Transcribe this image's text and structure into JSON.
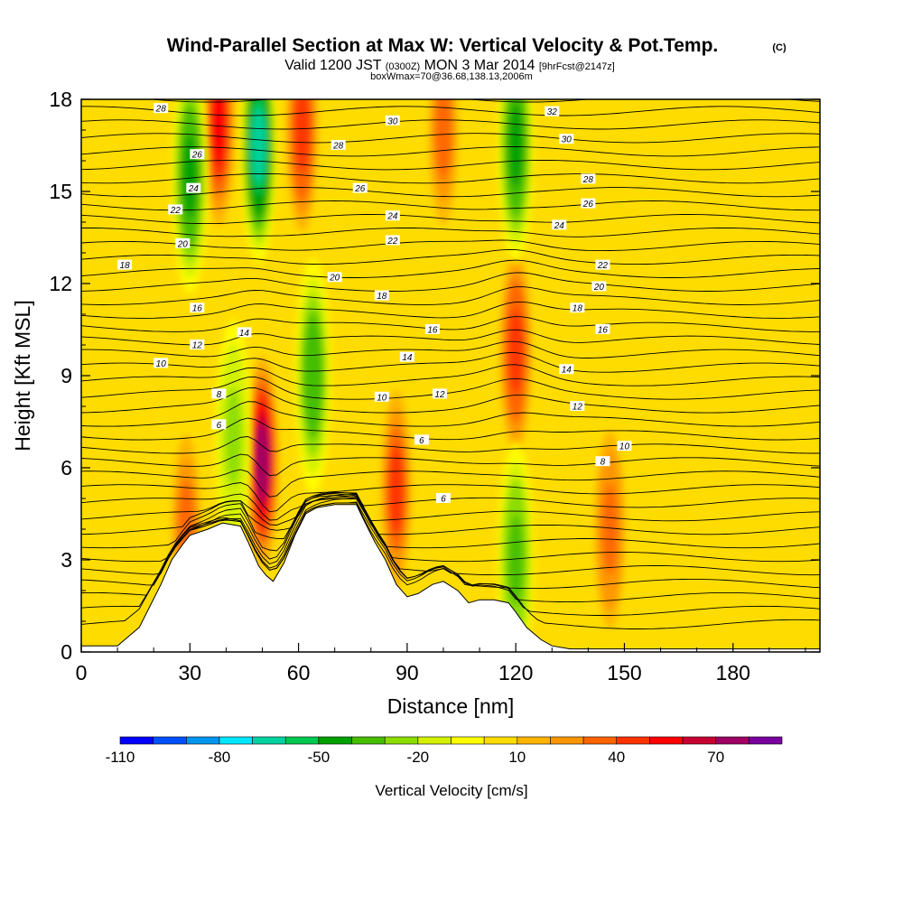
{
  "chart_data": {
    "type": "heatmap",
    "title": "Wind-Parallel Section at Max W: Vertical Velocity & Pot.Temp.",
    "title_mark": "(C)",
    "subtitle": {
      "valid": "Valid 1200 JST",
      "zulu": "(0300Z)",
      "date": "MON 3 Mar 2014",
      "fcst": "[9hrFcst@2147z]"
    },
    "box_info": "boxWmax=70@36.68,138.13,2006m",
    "xlabel": "Distance [nm]",
    "ylabel": "Height [Kft MSL]",
    "xlim": [
      0,
      204
    ],
    "ylim": [
      0,
      18
    ],
    "xticks": [
      "0",
      "30",
      "60",
      "90",
      "120",
      "150",
      "180"
    ],
    "yticks": [
      "0",
      "3",
      "6",
      "9",
      "12",
      "15",
      "18"
    ],
    "colorbar": {
      "label": "Vertical Velocity [cm/s]",
      "tick_labels": [
        "-110",
        "-80",
        "-50",
        "-20",
        "10",
        "40",
        "70"
      ],
      "levels": [
        -110,
        -100,
        -90,
        -80,
        -70,
        -60,
        -50,
        -40,
        -30,
        -20,
        -10,
        0,
        10,
        20,
        30,
        40,
        50,
        60,
        70,
        80
      ],
      "colors": [
        "#0000ff",
        "#0050ff",
        "#0096f0",
        "#00e6ff",
        "#00d2a0",
        "#00c850",
        "#00a000",
        "#46be00",
        "#8cdc00",
        "#d2f000",
        "#ffff00",
        "#ffdc00",
        "#ffb400",
        "#ff9600",
        "#ff6400",
        "#ff3200",
        "#ff0000",
        "#c80032",
        "#a00064",
        "#7800a0"
      ]
    },
    "terrain_kft": [
      [
        0,
        0.2
      ],
      [
        10,
        0.2
      ],
      [
        13,
        0.5
      ],
      [
        16,
        0.8
      ],
      [
        19,
        1.5
      ],
      [
        22,
        2.2
      ],
      [
        25,
        3.0
      ],
      [
        28,
        3.5
      ],
      [
        30,
        3.8
      ],
      [
        35,
        4.0
      ],
      [
        39,
        4.2
      ],
      [
        44,
        4.1
      ],
      [
        46,
        3.6
      ],
      [
        49,
        2.8
      ],
      [
        51,
        2.5
      ],
      [
        53,
        2.3
      ],
      [
        56,
        2.9
      ],
      [
        59,
        3.8
      ],
      [
        62,
        4.5
      ],
      [
        65,
        4.7
      ],
      [
        70,
        4.8
      ],
      [
        76,
        4.8
      ],
      [
        78,
        4.3
      ],
      [
        81,
        3.6
      ],
      [
        84,
        3.0
      ],
      [
        87,
        2.2
      ],
      [
        90,
        1.8
      ],
      [
        93,
        1.9
      ],
      [
        97,
        2.2
      ],
      [
        100,
        2.3
      ],
      [
        104,
        2.0
      ],
      [
        107,
        1.6
      ],
      [
        110,
        1.7
      ],
      [
        114,
        1.7
      ],
      [
        118,
        1.6
      ],
      [
        120,
        1.3
      ],
      [
        123,
        0.8
      ],
      [
        127,
        0.4
      ],
      [
        130,
        0.2
      ],
      [
        135,
        0.1
      ],
      [
        204,
        0.1
      ]
    ],
    "updraft_cores": [
      {
        "x": 38,
        "z": 17.2,
        "w": 50
      },
      {
        "x": 50,
        "z": 6.2,
        "w": 70
      },
      {
        "x": 61,
        "z": 17.0,
        "w": 45
      },
      {
        "x": 87,
        "z": 5.3,
        "w": 40
      },
      {
        "x": 120,
        "z": 9.8,
        "w": 45
      },
      {
        "x": 146,
        "z": 4.0,
        "w": 35
      },
      {
        "x": 29,
        "z": 4.0,
        "w": 30
      },
      {
        "x": 100,
        "z": 17.0,
        "w": 30
      }
    ],
    "downdraft_cores": [
      {
        "x": 49,
        "z": 16.5,
        "w": -65
      },
      {
        "x": 30,
        "z": 15.5,
        "w": -45
      },
      {
        "x": 64,
        "z": 9.0,
        "w": -40
      },
      {
        "x": 120,
        "z": 16.5,
        "w": -45
      },
      {
        "x": 120,
        "z": 3.0,
        "w": -35
      },
      {
        "x": 42,
        "z": 7.0,
        "w": -25
      }
    ],
    "isentropes": {
      "levels": [
        6,
        8,
        10,
        12,
        14,
        16,
        18,
        20,
        22,
        24,
        26,
        28,
        30,
        32
      ],
      "labels": [
        {
          "text": "28",
          "x": 22,
          "z": 17.7
        },
        {
          "text": "30",
          "x": 86,
          "z": 17.3
        },
        {
          "text": "32",
          "x": 130,
          "z": 17.6
        },
        {
          "text": "26",
          "x": 32,
          "z": 16.2
        },
        {
          "text": "28",
          "x": 71,
          "z": 16.5
        },
        {
          "text": "30",
          "x": 134,
          "z": 16.7
        },
        {
          "text": "24",
          "x": 31,
          "z": 15.1
        },
        {
          "text": "26",
          "x": 77,
          "z": 15.1
        },
        {
          "text": "28",
          "x": 140,
          "z": 15.4
        },
        {
          "text": "22",
          "x": 26,
          "z": 14.4
        },
        {
          "text": "24",
          "x": 86,
          "z": 14.2
        },
        {
          "text": "26",
          "x": 140,
          "z": 14.6
        },
        {
          "text": "20",
          "x": 28,
          "z": 13.3
        },
        {
          "text": "22",
          "x": 86,
          "z": 13.4
        },
        {
          "text": "24",
          "x": 132,
          "z": 13.9
        },
        {
          "text": "18",
          "x": 12,
          "z": 12.6
        },
        {
          "text": "20",
          "x": 70,
          "z": 12.2
        },
        {
          "text": "22",
          "x": 144,
          "z": 12.6
        },
        {
          "text": "18",
          "x": 83,
          "z": 11.6
        },
        {
          "text": "20",
          "x": 143,
          "z": 11.9
        },
        {
          "text": "16",
          "x": 32,
          "z": 11.2
        },
        {
          "text": "18",
          "x": 137,
          "z": 11.2
        },
        {
          "text": "14",
          "x": 45,
          "z": 10.4
        },
        {
          "text": "16",
          "x": 97,
          "z": 10.5
        },
        {
          "text": "16",
          "x": 144,
          "z": 10.5
        },
        {
          "text": "12",
          "x": 32,
          "z": 10.0
        },
        {
          "text": "14",
          "x": 90,
          "z": 9.6
        },
        {
          "text": "10",
          "x": 22,
          "z": 9.4
        },
        {
          "text": "14",
          "x": 134,
          "z": 9.2
        },
        {
          "text": "8",
          "x": 38,
          "z": 8.4
        },
        {
          "text": "10",
          "x": 83,
          "z": 8.3
        },
        {
          "text": "12",
          "x": 99,
          "z": 8.4
        },
        {
          "text": "12",
          "x": 137,
          "z": 8.0
        },
        {
          "text": "6",
          "x": 38,
          "z": 7.4
        },
        {
          "text": "6",
          "x": 94,
          "z": 6.9
        },
        {
          "text": "10",
          "x": 150,
          "z": 6.7
        },
        {
          "text": "8",
          "x": 144,
          "z": 6.2
        },
        {
          "text": "6",
          "x": 100,
          "z": 5.0
        }
      ]
    }
  }
}
